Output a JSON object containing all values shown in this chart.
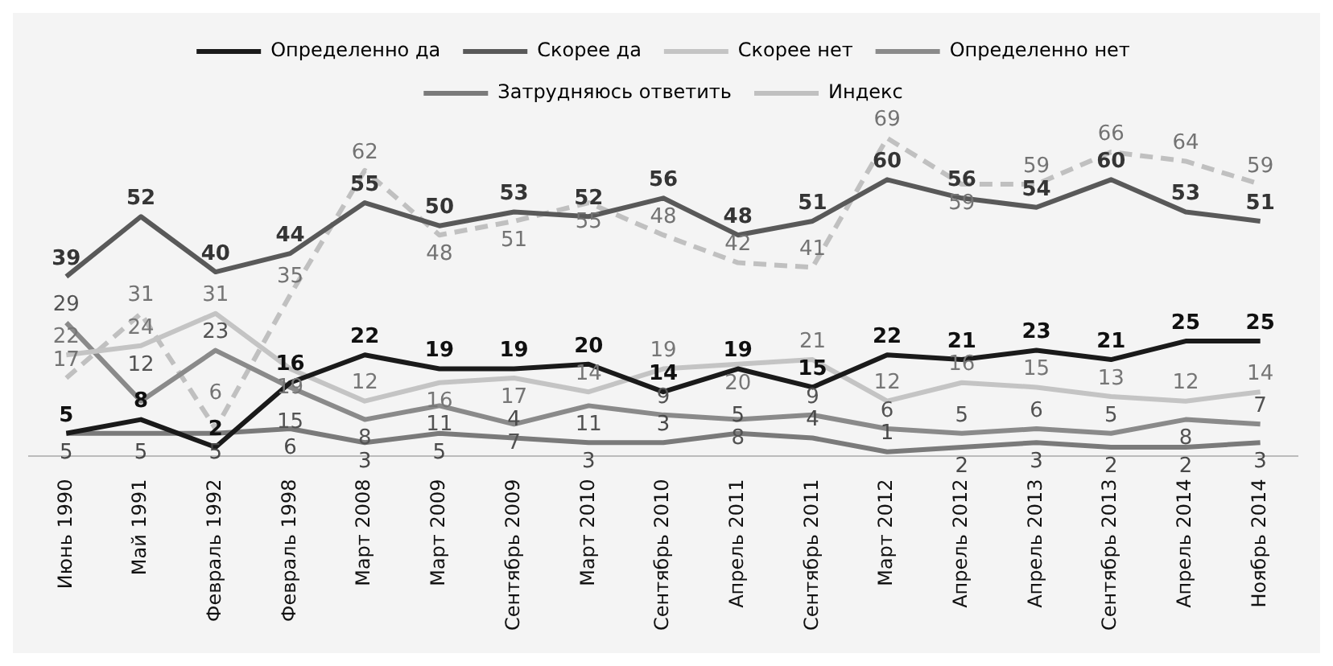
{
  "chart_data": {
    "type": "line",
    "categories": [
      "Июнь 1990",
      "Май 1991",
      "Февраль 1992",
      "Февраль 1998",
      "Март 2008",
      "Март 2009",
      "Сентябрь 2009",
      "Март 2010",
      "Сентябрь 2010",
      "Апрель 2011",
      "Сентябрь 2011",
      "Март 2012",
      "Апрель 2012",
      "Апрель 2013",
      "Сентябрь 2013",
      "Апрель 2014",
      "Ноябрь 2014"
    ],
    "series": [
      {
        "name": "Определенно да",
        "color": "#1a1a1a",
        "values": [
          5,
          8,
          2,
          16,
          22,
          19,
          19,
          20,
          14,
          19,
          15,
          22,
          21,
          23,
          21,
          25,
          25
        ]
      },
      {
        "name": "Скорее да",
        "color": "#595959",
        "values": [
          39,
          52,
          40,
          44,
          55,
          50,
          53,
          52,
          56,
          48,
          51,
          60,
          56,
          54,
          60,
          53,
          51
        ]
      },
      {
        "name": "Скорее нет",
        "color": "#c4c4c4",
        "values": [
          22,
          24,
          31,
          19,
          12,
          16,
          17,
          14,
          19,
          20,
          21,
          12,
          16,
          15,
          13,
          12,
          14
        ]
      },
      {
        "name": "Определенно нет",
        "color": "#8a8a8a",
        "values": [
          29,
          12,
          23,
          15,
          8,
          11,
          7,
          11,
          9,
          8,
          9,
          6,
          5,
          6,
          5,
          8,
          7
        ]
      },
      {
        "name": "Затрудняюсь ответить",
        "color": "#7a7a7a",
        "values": [
          5,
          5,
          5,
          6,
          3,
          5,
          4,
          3,
          3,
          5,
          4,
          1,
          2,
          3,
          2,
          2,
          3
        ]
      },
      {
        "name": "Индекс",
        "color": "#c0c0c0",
        "line_style": "dashed",
        "values": [
          17,
          31,
          6,
          35,
          62,
          48,
          51,
          55,
          48,
          42,
          41,
          69,
          59,
          59,
          66,
          64,
          59
        ]
      }
    ],
    "data_labels": true,
    "legend": "top",
    "grid": false,
    "marker": "none",
    "tick_labels": "x"
  }
}
